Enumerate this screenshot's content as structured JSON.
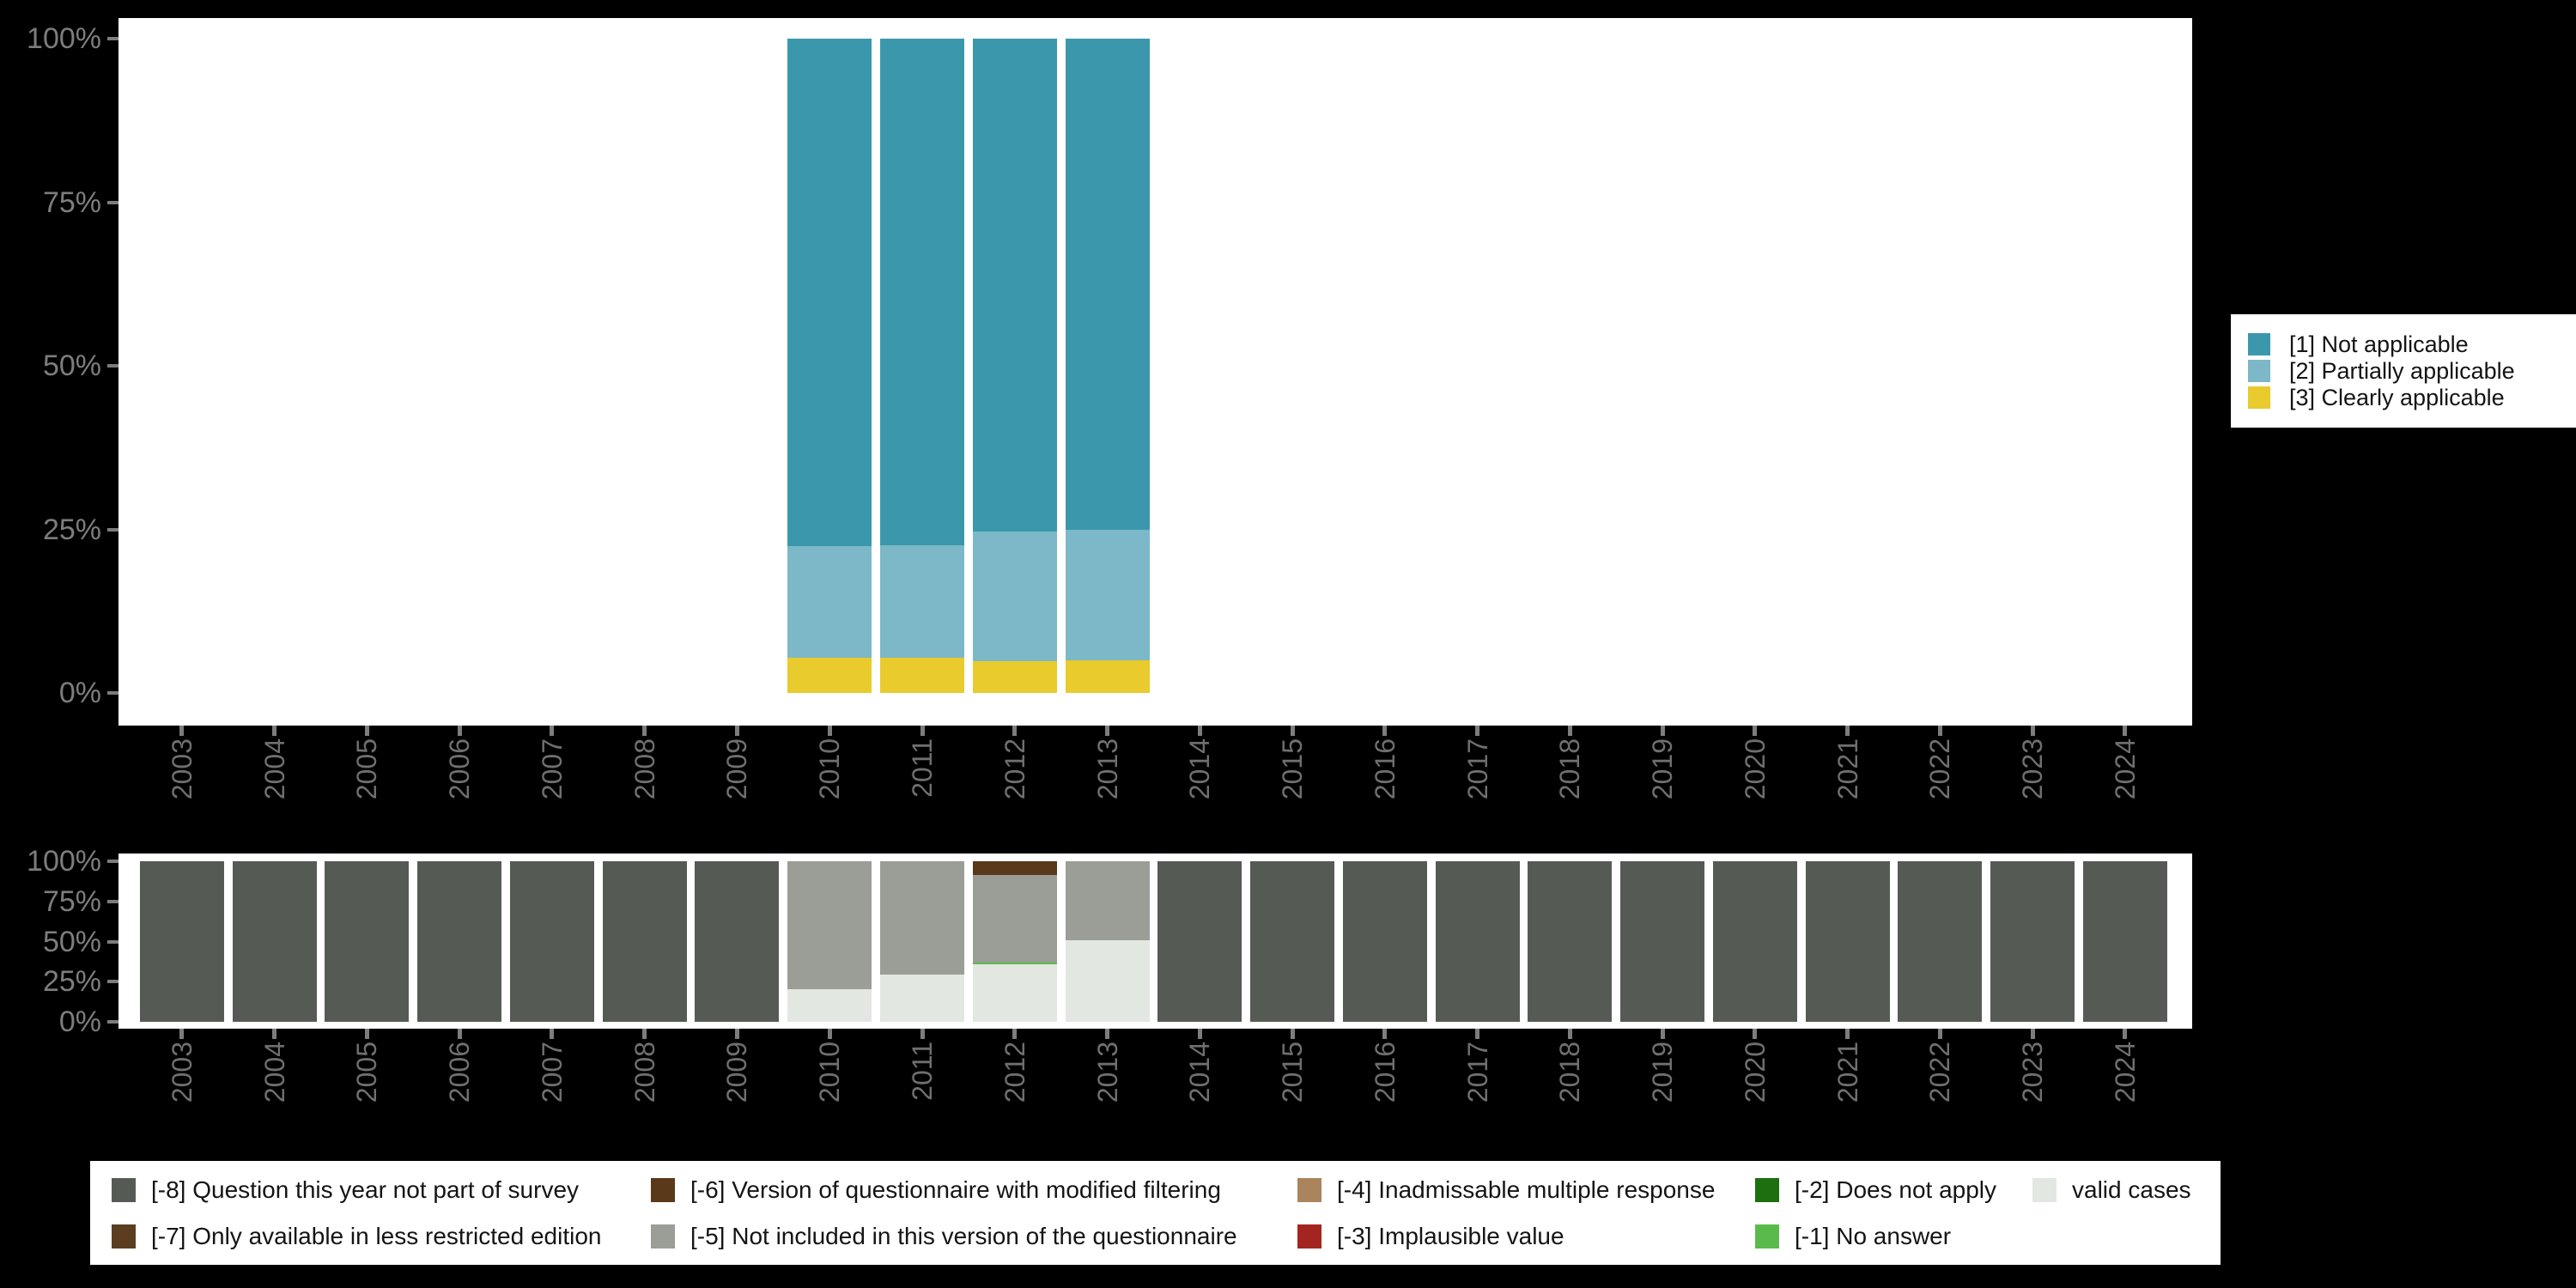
{
  "background_color": "#000000",
  "axis": {
    "y_tick_labels": [
      "100%",
      "75%",
      "50%",
      "25%",
      "0%"
    ],
    "y_tick_values": [
      100,
      75,
      50,
      25,
      0
    ],
    "x_tick_labels": [
      "2003",
      "2004",
      "2005",
      "2006",
      "2007",
      "2008",
      "2009",
      "2010",
      "2011",
      "2012",
      "2013",
      "2014",
      "2015",
      "2016",
      "2017",
      "2018",
      "2019",
      "2020",
      "2021",
      "2022",
      "2023",
      "2024"
    ],
    "tick_color": "#7d7d7d",
    "y_label_color": "#7d7d7d",
    "x_label_color": "#6f6f6f"
  },
  "chart_data": [
    {
      "id": "applicability-by-year",
      "type": "bar",
      "stacking": "percent",
      "grid": false,
      "legend_position": "right",
      "categories": [
        "2003",
        "2004",
        "2005",
        "2006",
        "2007",
        "2008",
        "2009",
        "2010",
        "2011",
        "2012",
        "2013",
        "2014",
        "2015",
        "2016",
        "2017",
        "2018",
        "2019",
        "2020",
        "2021",
        "2022",
        "2023",
        "2024"
      ],
      "ylim": [
        0,
        100
      ],
      "series": [
        {
          "name": "[1] Not applicable",
          "color": "#3b98ac",
          "values": [
            0,
            0,
            0,
            0,
            0,
            0,
            0,
            77.5,
            77.4,
            75.3,
            75.0,
            0,
            0,
            0,
            0,
            0,
            0,
            0,
            0,
            0,
            0,
            0
          ]
        },
        {
          "name": "[2] Partially applicable",
          "color": "#7cb8c7",
          "values": [
            0,
            0,
            0,
            0,
            0,
            0,
            0,
            17.1,
            17.2,
            19.8,
            20.0,
            0,
            0,
            0,
            0,
            0,
            0,
            0,
            0,
            0,
            0,
            0
          ]
        },
        {
          "name": "[3] Clearly applicable",
          "color": "#e9cb2d",
          "values": [
            0,
            0,
            0,
            0,
            0,
            0,
            0,
            5.4,
            5.4,
            4.9,
            5.0,
            0,
            0,
            0,
            0,
            0,
            0,
            0,
            0,
            0,
            0,
            0
          ]
        }
      ]
    },
    {
      "id": "missing-values-by-year",
      "type": "bar",
      "stacking": "percent",
      "grid": false,
      "legend_position": "bottom",
      "categories": [
        "2003",
        "2004",
        "2005",
        "2006",
        "2007",
        "2008",
        "2009",
        "2010",
        "2011",
        "2012",
        "2013",
        "2014",
        "2015",
        "2016",
        "2017",
        "2018",
        "2019",
        "2020",
        "2021",
        "2022",
        "2023",
        "2024"
      ],
      "ylim": [
        0,
        100
      ],
      "series": [
        {
          "name": "[-8] Question this year not part of survey",
          "color": "#555b54",
          "values": [
            100,
            100,
            100,
            100,
            100,
            100,
            100,
            0,
            0,
            0,
            0,
            100,
            100,
            100,
            100,
            100,
            100,
            100,
            100,
            100,
            100,
            100
          ]
        },
        {
          "name": "[-7] Only available in less restricted edition",
          "color": "#5b3d20",
          "values": [
            0,
            0,
            0,
            0,
            0,
            0,
            0,
            0,
            0,
            0,
            0,
            0,
            0,
            0,
            0,
            0,
            0,
            0,
            0,
            0,
            0,
            0
          ]
        },
        {
          "name": "[-6] Version of questionnaire with modified filtering",
          "color": "#593919",
          "values": [
            0,
            0,
            0,
            0,
            0,
            0,
            0,
            0,
            0,
            8.5,
            0,
            0,
            0,
            0,
            0,
            0,
            0,
            0,
            0,
            0,
            0,
            0
          ]
        },
        {
          "name": "[-5] Not included in this version of the questionnaire",
          "color": "#9a9e96",
          "values": [
            0,
            0,
            0,
            0,
            0,
            0,
            0,
            79.8,
            70.5,
            54.5,
            49.0,
            0,
            0,
            0,
            0,
            0,
            0,
            0,
            0,
            0,
            0,
            0
          ]
        },
        {
          "name": "[-4] Inadmissable multiple response",
          "color": "#a9845c",
          "values": [
            0,
            0,
            0,
            0,
            0,
            0,
            0,
            0,
            0,
            0,
            0,
            0,
            0,
            0,
            0,
            0,
            0,
            0,
            0,
            0,
            0,
            0
          ]
        },
        {
          "name": "[-3] Implausible value",
          "color": "#a42520",
          "values": [
            0,
            0,
            0,
            0,
            0,
            0,
            0,
            0,
            0,
            0,
            0,
            0,
            0,
            0,
            0,
            0,
            0,
            0,
            0,
            0,
            0,
            0
          ]
        },
        {
          "name": "[-2] Does not apply",
          "color": "#1d6f10",
          "values": [
            0,
            0,
            0,
            0,
            0,
            0,
            0,
            0,
            0,
            0,
            0,
            0,
            0,
            0,
            0,
            0,
            0,
            0,
            0,
            0,
            0,
            0
          ]
        },
        {
          "name": "[-1] No answer",
          "color": "#5abb4c",
          "values": [
            0,
            0,
            0,
            0,
            0,
            0,
            0,
            0,
            0,
            1.0,
            0,
            0,
            0,
            0,
            0,
            0,
            0,
            0,
            0,
            0,
            0,
            0
          ]
        },
        {
          "name": "valid cases",
          "color": "#e3e7e1",
          "values": [
            0,
            0,
            0,
            0,
            0,
            0,
            0,
            20.2,
            29.5,
            36.0,
            51.0,
            0,
            0,
            0,
            0,
            0,
            0,
            0,
            0,
            0,
            0,
            0
          ]
        }
      ]
    }
  ]
}
